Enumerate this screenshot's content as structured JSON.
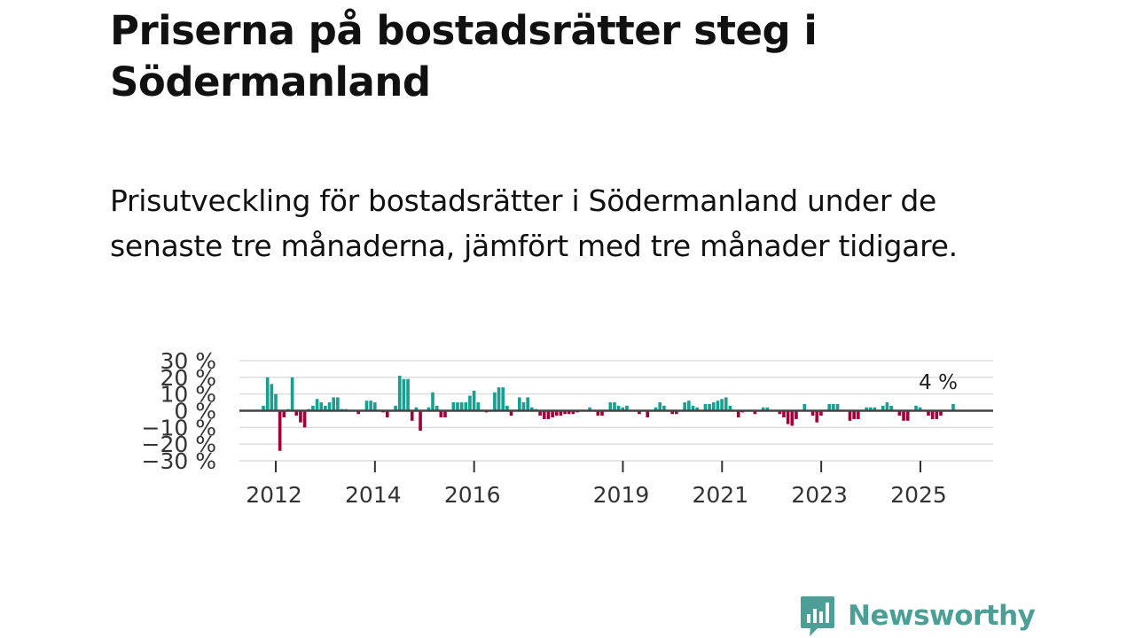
{
  "title": "Priserna på bostadsrätter steg i Södermanland",
  "subtitle": "Prisutveckling för bostadsrätter i Södermanland under de senaste tre månaderna, jämfört med tre månader tidigare.",
  "brand": {
    "name": "Newsworthy",
    "color": "#4b9f96"
  },
  "chart_data": {
    "type": "bar",
    "x_start": 2011.75,
    "x_step": 0.0833,
    "ylim": [
      -30,
      30
    ],
    "y_ticks": [
      30,
      20,
      10,
      0,
      -10,
      -20,
      -30
    ],
    "y_tick_labels": [
      "30 %",
      "20 %",
      "10 %",
      "0 %",
      "−10 %",
      "−20 %",
      "−30 %"
    ],
    "x_ticks": [
      2012,
      2014,
      2016,
      2019,
      2021,
      2023,
      2025
    ],
    "x_tick_labels": [
      "2012",
      "2014",
      "2016",
      "2019",
      "2021",
      "2023",
      "2025"
    ],
    "grid": true,
    "positive_color": "#1a9e90",
    "negative_color": "#a0003a",
    "annotation": {
      "x": 2025.75,
      "text": "4 %"
    },
    "values": [
      3,
      20,
      16,
      10,
      -24,
      -4,
      1,
      20,
      -3,
      -7,
      -10,
      1,
      3,
      7,
      5,
      3,
      5,
      8,
      8,
      1,
      1,
      0,
      0,
      -2,
      0,
      6,
      6,
      5,
      0,
      -1,
      -4,
      0,
      3,
      21,
      19,
      19,
      -6,
      2,
      -12,
      0,
      2,
      11,
      3,
      -4,
      -4,
      0,
      5,
      5,
      5,
      5,
      9,
      12,
      5,
      0,
      -1,
      0,
      11,
      14,
      14,
      3,
      -3,
      0,
      8,
      5,
      8,
      2,
      1,
      -3,
      -5,
      -5,
      -4,
      -3,
      -3,
      -2,
      -2,
      -2,
      -1,
      0,
      0,
      2,
      0,
      -3,
      -3,
      0,
      5,
      5,
      3,
      2,
      3,
      0,
      0,
      -2,
      0,
      -4,
      0,
      2,
      5,
      3,
      0,
      -2,
      -2,
      0,
      5,
      6,
      3,
      2,
      0,
      4,
      4,
      5,
      6,
      7,
      8,
      3,
      0,
      -4,
      -1,
      0,
      0,
      -2,
      0,
      2,
      2,
      0,
      0,
      -2,
      -4,
      -8,
      -9,
      -5,
      0,
      4,
      0,
      -3,
      -7,
      -3,
      0,
      4,
      4,
      4,
      0,
      0,
      -6,
      -5,
      -5,
      0,
      2,
      2,
      2,
      0,
      3,
      5,
      3,
      0,
      -3,
      -6,
      -6,
      0,
      3,
      2,
      0,
      -3,
      -5,
      -5,
      -3,
      0,
      0,
      4
    ]
  }
}
